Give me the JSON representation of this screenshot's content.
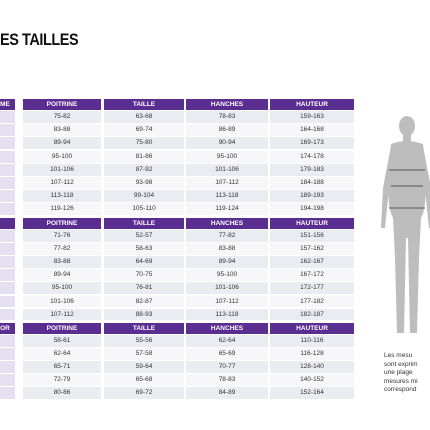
{
  "title": "ES TAILLES",
  "tables": [
    {
      "first_header": "ME",
      "columns": [
        "POITRINE",
        "TAILLE",
        "HANCHES",
        "HAUTEUR"
      ],
      "rows": [
        [
          "75-82",
          "63-68",
          "78-83",
          "159-163"
        ],
        [
          "83-88",
          "69-74",
          "86-89",
          "164-168"
        ],
        [
          "89-94",
          "75-80",
          "90-94",
          "169-173"
        ],
        [
          "95-100",
          "81-86",
          "95-100",
          "174-178"
        ],
        [
          "101-106",
          "87-92",
          "101-106",
          "179-183"
        ],
        [
          "107-112",
          "93-98",
          "107-112",
          "184-188"
        ],
        [
          "113-118",
          "99-104",
          "113-118",
          "189-193"
        ],
        [
          "119-126",
          "105-110",
          "119-124",
          "194-198"
        ]
      ]
    },
    {
      "columns": [
        "POITRINE",
        "TAILLE",
        "HANCHES",
        "HAUTEUR"
      ],
      "rows": [
        [
          "71-76",
          "52-57",
          "77-82",
          "151-156"
        ],
        [
          "77-82",
          "58-63",
          "83-88",
          "157-162"
        ],
        [
          "83-88",
          "64-69",
          "89-94",
          "162-167"
        ],
        [
          "89-94",
          "70-75",
          "95-100",
          "167-172"
        ],
        [
          "95-100",
          "76-81",
          "101-106",
          "172-177"
        ],
        [
          "101-106",
          "82-87",
          "107-112",
          "177-182"
        ],
        [
          "107-112",
          "88-93",
          "113-118",
          "182-187"
        ]
      ]
    },
    {
      "first_header": "OR",
      "columns": [
        "POITRINE",
        "TAILLE",
        "HANCHES",
        "HAUTEUR"
      ],
      "rows": [
        [
          "58-61",
          "55-56",
          "62-64",
          "110-116"
        ],
        [
          "62-64",
          "57-58",
          "65-69",
          "116-128"
        ],
        [
          "65-71",
          "59-64",
          "70-77",
          "128-140"
        ],
        [
          "72-79",
          "65-68",
          "78-83",
          "140-152"
        ],
        [
          "80-86",
          "69-72",
          "84-89",
          "152-164"
        ]
      ]
    }
  ],
  "note_lines": [
    "Les mesu",
    "sont exprim",
    "une plage",
    "mesures mi",
    "correspond"
  ]
}
